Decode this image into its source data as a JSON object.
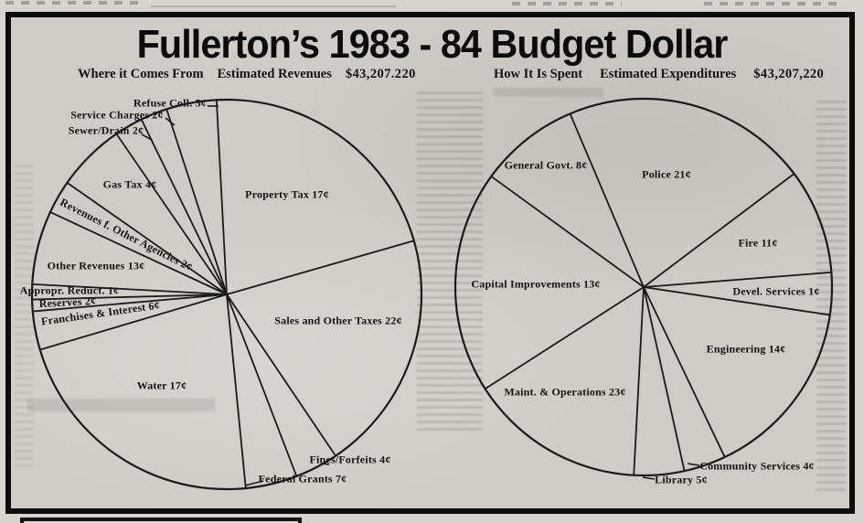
{
  "main": {
    "title": "Fullerton’s 1983 - 84 Budget Dollar"
  },
  "chart_data": [
    {
      "type": "pie",
      "position": "left",
      "title": "Where it Comes From",
      "subtitle": "Estimated Revenues",
      "total": "$43,207.220",
      "value_unit": "cents",
      "slices": [
        {
          "label": "Property Tax 17¢",
          "name": "Property Tax",
          "value": 17
        },
        {
          "label": "Sales and Other Taxes 22¢",
          "name": "Sales and Other Taxes",
          "value": 22
        },
        {
          "label": "Fines/Forfeits 4¢",
          "name": "Fines/Forfeits",
          "value": 4
        },
        {
          "label": "Federal Grants 7¢",
          "name": "Federal Grants",
          "value": 7
        },
        {
          "label": "Water 17¢",
          "name": "Water",
          "value": 17
        },
        {
          "label": "Franchises & Interest 6¢",
          "name": "Franchises & Interest",
          "value": 6
        },
        {
          "label": "Reserves 2¢",
          "name": "Reserves",
          "value": 2
        },
        {
          "label": "Appropr. Reduct. 1¢",
          "name": "Appropr. Reduct.",
          "value": 1
        },
        {
          "label": "Other Revenues 13¢",
          "name": "Other Revenues",
          "value": 13
        },
        {
          "label": "Revenues f. Other Agencies 2¢",
          "name": "Revenues f. Other Agencies",
          "value": 2
        },
        {
          "label": "Gas Tax 4¢",
          "name": "Gas Tax",
          "value": 4
        },
        {
          "label": "Sewer/Drain 2¢",
          "name": "Sewer/Drain",
          "value": 2
        },
        {
          "label": "Service Charges 2¢",
          "name": "Service Charges",
          "value": 2
        },
        {
          "label": "Refuse Coll. 5¢",
          "name": "Refuse Coll.",
          "value": 5
        }
      ]
    },
    {
      "type": "pie",
      "position": "right",
      "title": "How It Is Spent",
      "subtitle": "Estimated Expenditures",
      "total": "$43,207,220",
      "value_unit": "cents",
      "slices": [
        {
          "label": "Police 21¢",
          "name": "Police",
          "value": 21
        },
        {
          "label": "Fire 11¢",
          "name": "Fire",
          "value": 11
        },
        {
          "label": "Devel. Services 1¢",
          "name": "Devel. Services",
          "value": 1
        },
        {
          "label": "Engineering 14¢",
          "name": "Engineering",
          "value": 14
        },
        {
          "label": "Community Services 4¢",
          "name": "Community Services",
          "value": 4
        },
        {
          "label": "Library 5¢",
          "name": "Library",
          "value": 5
        },
        {
          "label": "Maint. & Operations 23¢",
          "name": "Maint. & Operations",
          "value": 23
        },
        {
          "label": "Capital Improvements 13¢",
          "name": "Capital Improvements",
          "value": 13
        },
        {
          "label": "General Govt. 8¢",
          "name": "General Govt.",
          "value": 8
        }
      ]
    }
  ]
}
